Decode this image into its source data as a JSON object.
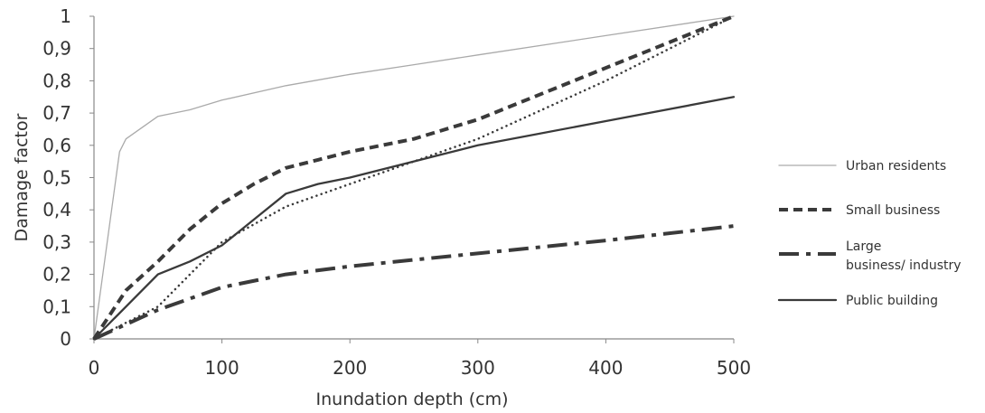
{
  "chart_data": {
    "type": "line",
    "xlabel": "Inundation depth (cm)",
    "ylabel": "Damage factor",
    "xlim": [
      0,
      500
    ],
    "ylim": [
      0,
      1
    ],
    "x_ticks": [
      "0",
      "100",
      "200",
      "300",
      "400",
      "500"
    ],
    "y_ticks": [
      "0",
      "0,1",
      "0,2",
      "0,3",
      "0,4",
      "0,5",
      "0,6",
      "0,7",
      "0,8",
      "0,9",
      "1"
    ],
    "grid": false,
    "legend_position": "right",
    "series": [
      {
        "name": "Urban residents",
        "style": "thin-solid",
        "color": "#aaaaaa",
        "x": [
          0,
          20,
          25,
          50,
          75,
          100,
          150,
          200,
          250,
          300,
          400,
          500
        ],
        "y": [
          0,
          0.58,
          0.62,
          0.69,
          0.71,
          0.74,
          0.785,
          0.82,
          0.85,
          0.88,
          0.94,
          1.0
        ]
      },
      {
        "name": "Small business",
        "style": "dashed",
        "color": "#3a3a3a",
        "x": [
          0,
          25,
          50,
          75,
          100,
          125,
          150,
          175,
          200,
          250,
          300,
          350,
          400,
          450,
          500
        ],
        "y": [
          0,
          0.15,
          0.24,
          0.34,
          0.42,
          0.48,
          0.53,
          0.555,
          0.58,
          0.62,
          0.68,
          0.76,
          0.84,
          0.92,
          1.0
        ]
      },
      {
        "name": "Large business/ industry",
        "style": "dash-dot",
        "color": "#3a3a3a",
        "x": [
          0,
          50,
          100,
          150,
          200,
          250,
          300,
          400,
          500
        ],
        "y": [
          0,
          0.09,
          0.16,
          0.2,
          0.225,
          0.245,
          0.265,
          0.305,
          0.35
        ]
      },
      {
        "name": "Public building",
        "style": "solid",
        "color": "#3a3a3a",
        "x": [
          0,
          25,
          50,
          75,
          100,
          125,
          150,
          175,
          200,
          250,
          300,
          400,
          500
        ],
        "y": [
          0,
          0.1,
          0.2,
          0.24,
          0.29,
          0.37,
          0.45,
          0.48,
          0.5,
          0.55,
          0.6,
          0.675,
          0.75
        ]
      },
      {
        "name": "",
        "style": "dotted",
        "color": "#3a3a3a",
        "x": [
          0,
          50,
          100,
          150,
          200,
          300,
          400,
          500
        ],
        "y": [
          0,
          0.1,
          0.3,
          0.41,
          0.48,
          0.62,
          0.8,
          1.0
        ]
      }
    ]
  }
}
